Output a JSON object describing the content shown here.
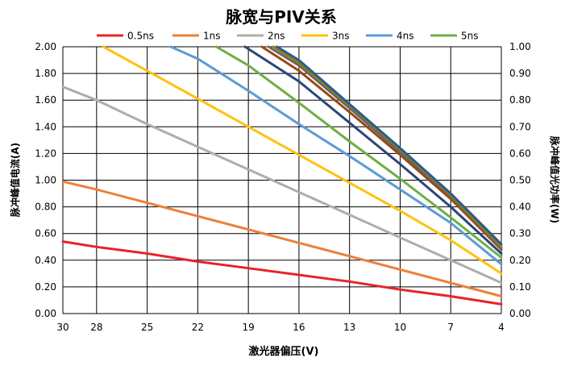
{
  "chart_data": {
    "type": "line",
    "title": "脉宽与PIV关系",
    "xlabel": "激光器偏压(V)",
    "ylabel": "脉冲峰值电流(A)",
    "y2label": "脉冲峰值光功率(W)",
    "x_ticks": [
      "30",
      "28",
      "25",
      "22",
      "19",
      "16",
      "13",
      "10",
      "7",
      "4"
    ],
    "x_reversed": true,
    "xlim": [
      30,
      4
    ],
    "ylim": [
      0,
      2
    ],
    "y_ticks": [
      "0.00",
      "0.20",
      "0.40",
      "0.60",
      "0.80",
      "1.00",
      "1.20",
      "1.40",
      "1.60",
      "1.80",
      "2.00"
    ],
    "y2lim": [
      0,
      1
    ],
    "y2_ticks": [
      "0.00",
      "0.10",
      "0.20",
      "0.30",
      "0.40",
      "0.50",
      "0.60",
      "0.70",
      "0.80",
      "0.90",
      "1.00"
    ],
    "grid": true,
    "legend_position": "top",
    "series": [
      {
        "name": "0.5ns",
        "color": "#e6242a",
        "x": [
          30,
          28,
          25,
          22,
          19,
          16,
          13,
          10,
          7,
          4
        ],
        "y": [
          0.54,
          0.5,
          0.45,
          0.39,
          0.34,
          0.29,
          0.24,
          0.18,
          0.13,
          0.07
        ]
      },
      {
        "name": "1ns",
        "color": "#ea8137",
        "x": [
          30,
          28,
          25,
          22,
          19,
          16,
          13,
          10,
          7,
          4
        ],
        "y": [
          0.99,
          0.93,
          0.83,
          0.73,
          0.63,
          0.53,
          0.43,
          0.33,
          0.23,
          0.13
        ]
      },
      {
        "name": "2ns",
        "color": "#adadad",
        "x": [
          30,
          28,
          25,
          22,
          19,
          16,
          13,
          10,
          7,
          4
        ],
        "y": [
          1.7,
          1.6,
          1.42,
          1.25,
          1.08,
          0.91,
          0.74,
          0.57,
          0.4,
          0.23
        ]
      },
      {
        "name": "3ns",
        "color": "#fec20f",
        "x": [
          27.6,
          25,
          22,
          19,
          16,
          13,
          10,
          7,
          4
        ],
        "y": [
          2.0,
          1.82,
          1.61,
          1.4,
          1.19,
          0.98,
          0.77,
          0.55,
          0.3
        ]
      },
      {
        "name": "4ns",
        "color": "#5b9bd5",
        "x": [
          23.6,
          22,
          19,
          16,
          13,
          10,
          7,
          4
        ],
        "y": [
          2.0,
          1.91,
          1.67,
          1.42,
          1.18,
          0.93,
          0.68,
          0.37
        ]
      },
      {
        "name": "5ns",
        "color": "#6fae45",
        "x": [
          20.9,
          19,
          16,
          13,
          10,
          7,
          4
        ],
        "y": [
          2.0,
          1.86,
          1.58,
          1.29,
          1.01,
          0.72,
          0.42
        ]
      },
      {
        "color": "#294679",
        "x": [
          19.2,
          16,
          13,
          10,
          7,
          4
        ],
        "y": [
          2.0,
          1.74,
          1.43,
          1.12,
          0.8,
          0.45
        ]
      },
      {
        "color": "#9c4714",
        "x": [
          18.2,
          16,
          13,
          10,
          7,
          4
        ],
        "y": [
          2.0,
          1.82,
          1.51,
          1.19,
          0.86,
          0.48
        ]
      },
      {
        "color": "#666666",
        "x": [
          17.8,
          16,
          13,
          10,
          7,
          4
        ],
        "y": [
          2.0,
          1.86,
          1.54,
          1.21,
          0.88,
          0.49
        ]
      },
      {
        "color": "#9a7a0e",
        "x": [
          17.5,
          16,
          13,
          10,
          7,
          4
        ],
        "y": [
          2.0,
          1.88,
          1.56,
          1.23,
          0.89,
          0.5
        ]
      },
      {
        "color": "#275e91",
        "x": [
          17.3,
          16,
          13,
          10,
          7,
          4
        ],
        "y": [
          2.0,
          1.9,
          1.57,
          1.24,
          0.9,
          0.52
        ]
      }
    ]
  }
}
